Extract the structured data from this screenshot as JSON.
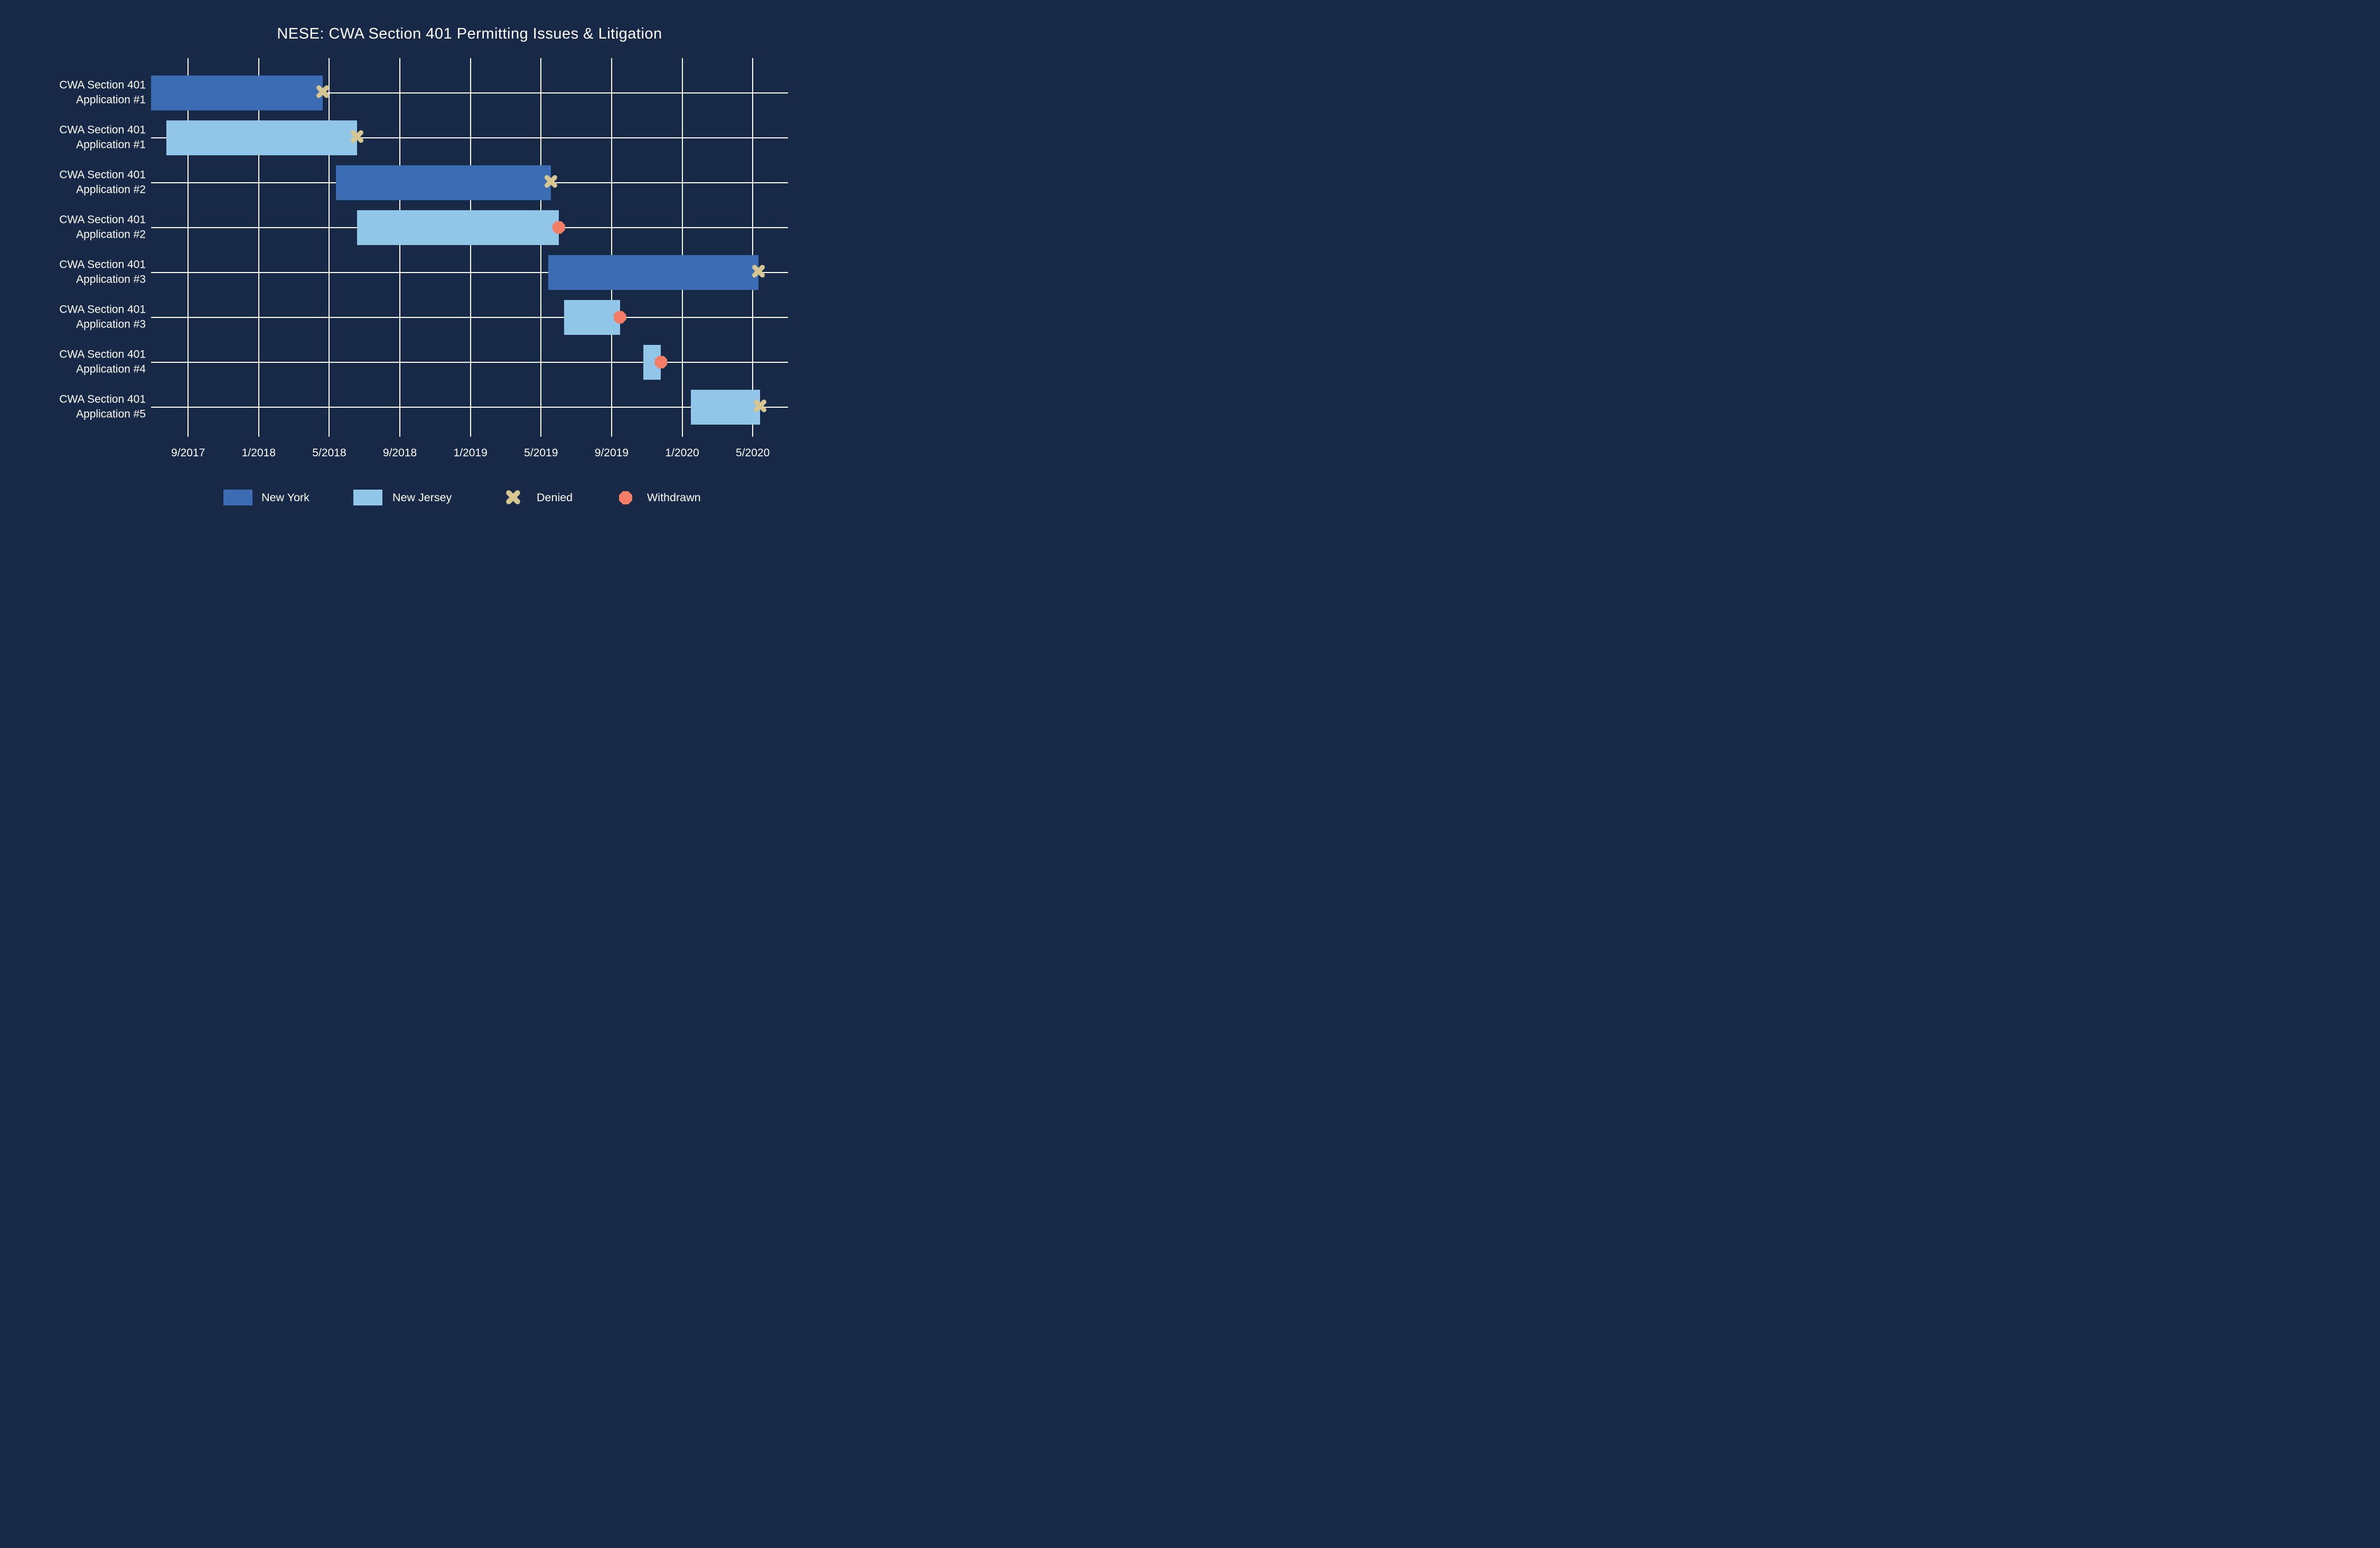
{
  "title": "NESE: CWA Section 401 Permitting Issues & Litigation",
  "colors": {
    "background": "#182948",
    "bar_new_york": "#3C6CB4",
    "bar_new_jersey": "#92C6E9",
    "marker_denied": "#D6C691",
    "marker_withdrawn": "#F47D66",
    "gridline": "#FFFFFF",
    "text": "#FFFFFF"
  },
  "chart_data": {
    "type": "gantt",
    "title": "NESE: CWA Section 401 Permitting Issues & Litigation",
    "x_axis": {
      "tick_labels": [
        "9/2017",
        "1/2018",
        "5/2018",
        "9/2018",
        "1/2019",
        "5/2019",
        "9/2019",
        "1/2020",
        "5/2020"
      ],
      "tick_dates": [
        "2017-09-01",
        "2018-01-01",
        "2018-05-01",
        "2018-09-01",
        "2019-01-01",
        "2019-05-01",
        "2019-09-01",
        "2020-01-01",
        "2020-05-01"
      ],
      "domain": [
        "2017-06-28",
        "2020-07-01"
      ],
      "gridlines": true
    },
    "rows": [
      {
        "label_line1": "CWA Section 401",
        "label_line2": "Application #1",
        "state": "New York",
        "start": "2017-06-28",
        "end": "2018-04-20",
        "outcome": "Denied"
      },
      {
        "label_line1": "CWA Section 401",
        "label_line2": "Application #1",
        "state": "New Jersey",
        "start": "2017-07-24",
        "end": "2018-06-18",
        "outcome": "Denied"
      },
      {
        "label_line1": "CWA Section 401",
        "label_line2": "Application #2",
        "state": "New York",
        "start": "2018-05-12",
        "end": "2019-05-18",
        "outcome": "Denied"
      },
      {
        "label_line1": "CWA Section 401",
        "label_line2": "Application #2",
        "state": "New Jersey",
        "start": "2018-06-18",
        "end": "2019-06-01",
        "outcome": "Withdrawn"
      },
      {
        "label_line1": "CWA Section 401",
        "label_line2": "Application #3",
        "state": "New York",
        "start": "2019-05-13",
        "end": "2020-05-11",
        "outcome": "Denied"
      },
      {
        "label_line1": "CWA Section 401",
        "label_line2": "Application #3",
        "state": "New Jersey",
        "start": "2019-06-10",
        "end": "2019-09-15",
        "outcome": "Withdrawn"
      },
      {
        "label_line1": "CWA Section 401",
        "label_line2": "Application #4",
        "state": "New Jersey",
        "start": "2019-10-25",
        "end": "2019-11-25",
        "outcome": "Withdrawn"
      },
      {
        "label_line1": "CWA Section 401",
        "label_line2": "Application #5",
        "state": "New Jersey",
        "start": "2020-01-16",
        "end": "2020-05-13",
        "outcome": "Denied"
      }
    ],
    "legend": [
      {
        "label": "New York",
        "type": "bar",
        "color_key": "bar_new_york"
      },
      {
        "label": "New Jersey",
        "type": "bar",
        "color_key": "bar_new_jersey"
      },
      {
        "label": "Denied",
        "type": "x",
        "color_key": "marker_denied"
      },
      {
        "label": "Withdrawn",
        "type": "octagon",
        "color_key": "marker_withdrawn"
      }
    ],
    "layout_hints": {
      "legend_position": "bottom",
      "grid": "on",
      "background": "dark-navy"
    }
  }
}
